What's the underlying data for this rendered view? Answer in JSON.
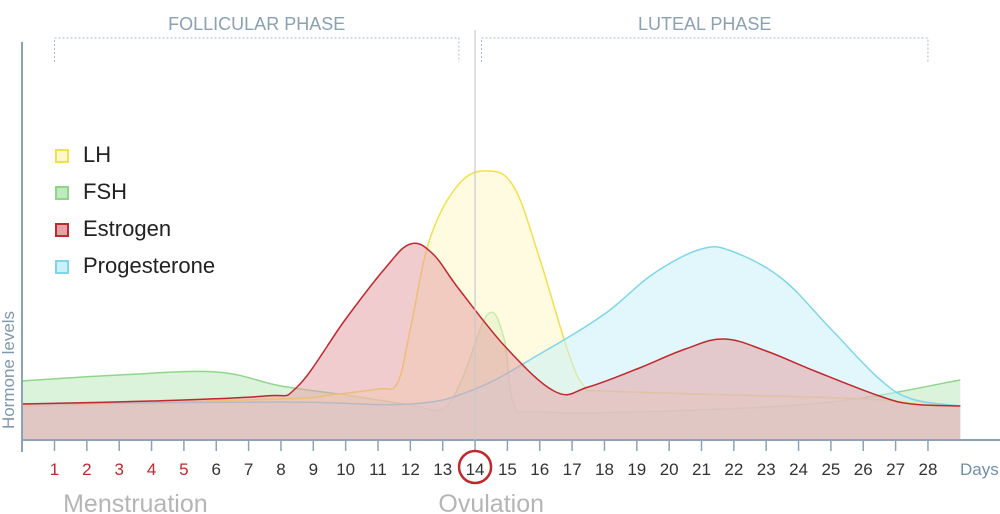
{
  "chart_data": {
    "type": "area",
    "phases": [
      {
        "label": "FOLLICULAR PHASE",
        "start_day": 1,
        "end_day": 13.5
      },
      {
        "label": "LUTEAL PHASE",
        "start_day": 14.2,
        "end_day": 28
      }
    ],
    "ylabel": "Hormone levels",
    "xlabel": "Days",
    "x_ticks": [
      1,
      2,
      3,
      4,
      5,
      6,
      7,
      8,
      9,
      10,
      11,
      12,
      13,
      14,
      15,
      16,
      17,
      18,
      19,
      20,
      21,
      22,
      23,
      24,
      25,
      26,
      27,
      28
    ],
    "highlight_days": [
      1,
      2,
      3,
      4,
      5
    ],
    "highlight_color": "#c0282d",
    "circled_day": 14,
    "bottom_labels": [
      {
        "label": "Menstruation",
        "day": 3.5
      },
      {
        "label": "Ovulation",
        "day": 14.5
      }
    ],
    "series": [
      {
        "name": "FSH",
        "fill": "#bfeabd",
        "stroke": "#8fd68c",
        "points": [
          [
            -0.3,
            58
          ],
          [
            3,
            64
          ],
          [
            6,
            67
          ],
          [
            8,
            53
          ],
          [
            10,
            44
          ],
          [
            12,
            34
          ],
          [
            13,
            30
          ],
          [
            13.6,
            60
          ],
          [
            14.4,
            125
          ],
          [
            14.9,
            100
          ],
          [
            15.2,
            35
          ],
          [
            16,
            27
          ],
          [
            20,
            28
          ],
          [
            25,
            37
          ],
          [
            29,
            59
          ]
        ]
      },
      {
        "name": "LH",
        "fill": "#fdf7c9",
        "stroke": "#f4e04a",
        "points": [
          [
            -0.3,
            33
          ],
          [
            8,
            40
          ],
          [
            9.5,
            44
          ],
          [
            11,
            50
          ],
          [
            11.6,
            56
          ],
          [
            12,
            110
          ],
          [
            12.6,
            200
          ],
          [
            13.5,
            255
          ],
          [
            14.4,
            268
          ],
          [
            15.2,
            252
          ],
          [
            16,
            180
          ],
          [
            16.9,
            85
          ],
          [
            17.4,
            52
          ],
          [
            18,
            48
          ],
          [
            22,
            44
          ],
          [
            26,
            40
          ],
          [
            29,
            33
          ]
        ]
      },
      {
        "name": "Progesterone",
        "fill": "#c8f1f8",
        "stroke": "#7fd6ea",
        "points": [
          [
            -0.3,
            35
          ],
          [
            8,
            37
          ],
          [
            12,
            35
          ],
          [
            14,
            50
          ],
          [
            16,
            85
          ],
          [
            18,
            125
          ],
          [
            19.5,
            165
          ],
          [
            21,
            190
          ],
          [
            22,
            187
          ],
          [
            23.5,
            160
          ],
          [
            25,
            110
          ],
          [
            26.5,
            60
          ],
          [
            27.5,
            40
          ],
          [
            29,
            33
          ]
        ]
      },
      {
        "name": "Estrogen",
        "fill": "#e5a2a6",
        "stroke": "#c0282d",
        "points": [
          [
            -0.3,
            35
          ],
          [
            4,
            38
          ],
          [
            7.5,
            43
          ],
          [
            8.5,
            52
          ],
          [
            10,
            120
          ],
          [
            11.2,
            170
          ],
          [
            12,
            195
          ],
          [
            12.7,
            185
          ],
          [
            13.5,
            150
          ],
          [
            15,
            90
          ],
          [
            16.5,
            47
          ],
          [
            17.5,
            52
          ],
          [
            19,
            70
          ],
          [
            20.5,
            90
          ],
          [
            21.7,
            100
          ],
          [
            23,
            88
          ],
          [
            24.5,
            68
          ],
          [
            26.5,
            43
          ],
          [
            27.5,
            35
          ],
          [
            29,
            33
          ]
        ]
      }
    ],
    "legend": [
      "LH",
      "FSH",
      "Estrogen",
      "Progesterone"
    ]
  }
}
